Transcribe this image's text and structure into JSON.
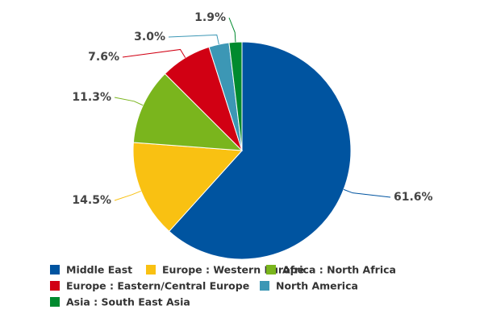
{
  "chart_data": {
    "type": "pie",
    "categories": [
      "Middle East",
      "Europe : Western Europe",
      "Africa : North Africa",
      "Europe : Eastern/Central Europe",
      "North America",
      "Asia : South East Asia"
    ],
    "series": [
      {
        "values": [
          61.6,
          14.5,
          11.3,
          7.6,
          3.0,
          1.9
        ],
        "value_labels": [
          "61.6%",
          "14.5%",
          "11.3%",
          "7.6%",
          "3.0%",
          "1.9%"
        ],
        "colors": [
          "#0054a0",
          "#f9c112",
          "#7ab51d",
          "#d10013",
          "#3c97b5",
          "#008a2e"
        ]
      }
    ],
    "legend": "bottom"
  }
}
